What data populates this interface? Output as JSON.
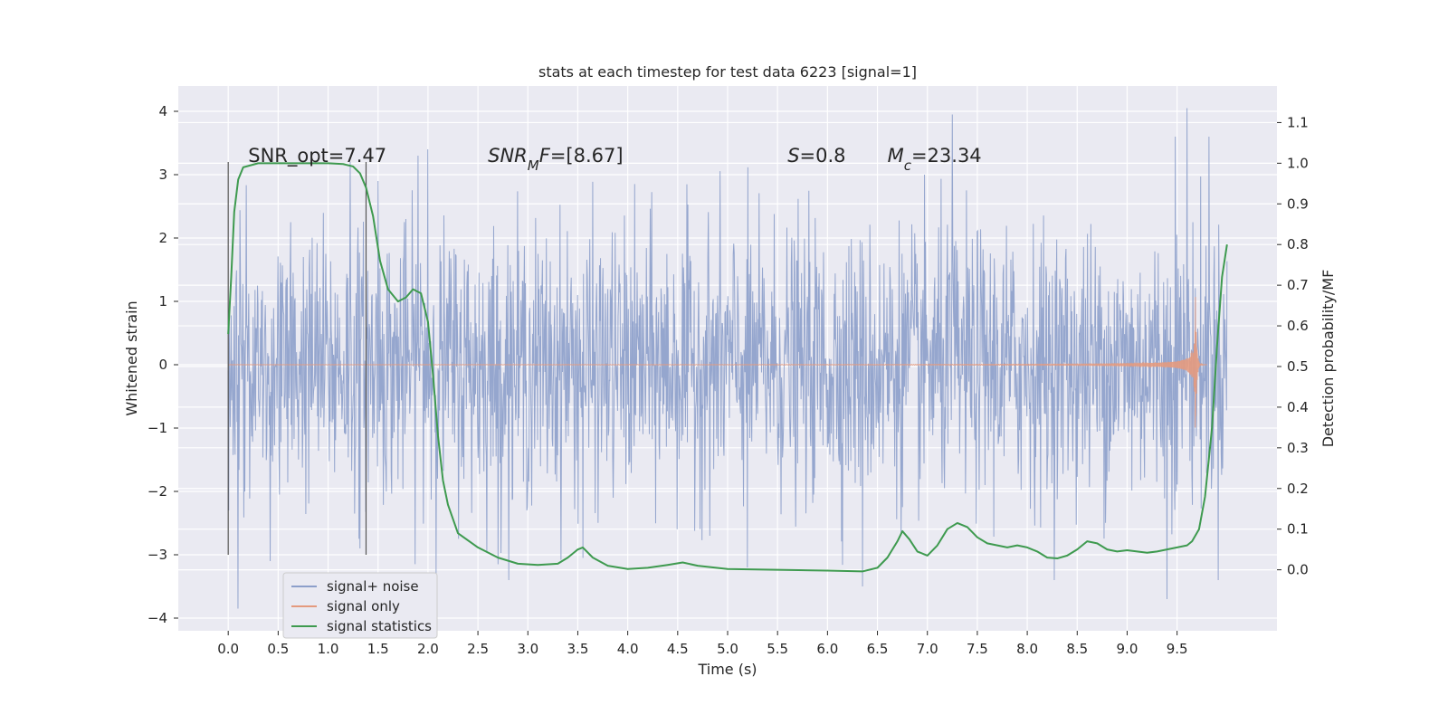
{
  "chart_data": {
    "type": "line",
    "title": "stats at each timestep for test data 6223 [signal=1]",
    "xlabel": "Time (s)",
    "ylabel": "Whitened strain",
    "y2label": "Detection probability/MF",
    "xlim": [
      -0.5,
      10.5
    ],
    "ylim": [
      -4.2,
      4.4
    ],
    "y2lim": [
      -0.15,
      1.19
    ],
    "xticks": [
      0.0,
      0.5,
      1.0,
      1.5,
      2.0,
      2.5,
      3.0,
      3.5,
      4.0,
      4.5,
      5.0,
      5.5,
      6.0,
      6.5,
      7.0,
      7.5,
      8.0,
      8.5,
      9.0,
      9.5
    ],
    "xtick_labels": [
      "0.0",
      "0.5",
      "1.0",
      "1.5",
      "2.0",
      "2.5",
      "3.0",
      "3.5",
      "4.0",
      "4.5",
      "5.0",
      "5.5",
      "6.0",
      "6.5",
      "7.0",
      "7.5",
      "8.0",
      "8.5",
      "9.0",
      "9.5"
    ],
    "yticks": [
      4,
      3,
      2,
      1,
      0,
      -1,
      -2,
      -3,
      -4
    ],
    "ytick_labels": [
      "4",
      "3",
      "2",
      "1",
      "0",
      "−1",
      "−2",
      "−3",
      "−4"
    ],
    "y2ticks": [
      1.1,
      1.0,
      0.9,
      0.8,
      0.7,
      0.6,
      0.5,
      0.4,
      0.3,
      0.2,
      0.1,
      0.0
    ],
    "y2tick_labels": [
      "1.1",
      "1.0",
      "0.9",
      "0.8",
      "0.7",
      "0.6",
      "0.5",
      "0.4",
      "0.3",
      "0.2",
      "0.1",
      "0.0"
    ],
    "grid": true,
    "legend_position": "lower-left",
    "annotations": [
      {
        "text": "SNR_opt=7.47",
        "x": 0.2,
        "y": 3.2
      },
      {
        "text": "SNR_MF=[8.67]",
        "x": 2.6,
        "y": 3.2
      },
      {
        "text": "S=0.8",
        "x": 5.6,
        "y": 3.2
      },
      {
        "text": "M_c=23.34",
        "x": 6.6,
        "y": 3.2
      }
    ],
    "vlines": [
      {
        "x": 0.0,
        "ymin": -3.0,
        "ymax": 3.2
      },
      {
        "x": 1.38,
        "ymin": -3.0,
        "ymax": 3.2
      }
    ],
    "series": [
      {
        "name": "signal+ noise",
        "color": "#8c9fca",
        "axis": "left",
        "t_range": [
          0.0,
          10.0
        ],
        "samples": 2048,
        "rms": 1.0,
        "peaks": [
          [
            0.1,
            -3.85
          ],
          [
            0.42,
            -3.1
          ],
          [
            1.22,
            3.2
          ],
          [
            1.32,
            -2.9
          ],
          [
            1.5,
            2.9
          ],
          [
            1.9,
            3.3
          ],
          [
            2.0,
            3.4
          ],
          [
            2.7,
            -3.15
          ],
          [
            3.55,
            -3.05
          ],
          [
            5.2,
            -3.2
          ],
          [
            6.35,
            -3.5
          ],
          [
            7.25,
            3.95
          ],
          [
            9.4,
            -3.7
          ],
          [
            9.6,
            4.05
          ],
          [
            9.48,
            3.6
          ],
          [
            9.82,
            3.6
          ]
        ]
      },
      {
        "name": "signal only",
        "color": "#e49a7e",
        "axis": "left",
        "t_range": [
          0.0,
          9.8
        ],
        "merger_time": 9.68,
        "peak_amplitude": 1.5
      },
      {
        "name": "signal statistics",
        "color": "#3e9a4f",
        "axis": "right",
        "x": [
          0.0,
          0.03,
          0.06,
          0.1,
          0.15,
          0.3,
          0.6,
          1.0,
          1.15,
          1.25,
          1.32,
          1.38,
          1.45,
          1.52,
          1.6,
          1.7,
          1.78,
          1.85,
          1.93,
          2.0,
          2.05,
          2.1,
          2.15,
          2.2,
          2.3,
          2.5,
          2.7,
          2.9,
          3.1,
          3.3,
          3.4,
          3.5,
          3.55,
          3.65,
          3.8,
          4.0,
          4.2,
          4.4,
          4.55,
          4.7,
          5.0,
          5.5,
          6.0,
          6.35,
          6.5,
          6.6,
          6.7,
          6.75,
          6.82,
          6.9,
          7.0,
          7.1,
          7.2,
          7.3,
          7.4,
          7.5,
          7.6,
          7.7,
          7.8,
          7.9,
          8.0,
          8.1,
          8.2,
          8.3,
          8.4,
          8.5,
          8.6,
          8.7,
          8.8,
          8.9,
          9.0,
          9.1,
          9.2,
          9.3,
          9.4,
          9.5,
          9.6,
          9.65,
          9.72,
          9.78,
          9.85,
          9.9,
          9.95,
          10.0
        ],
        "y": [
          0.58,
          0.72,
          0.88,
          0.96,
          0.99,
          1.0,
          1.0,
          1.0,
          0.998,
          0.992,
          0.975,
          0.94,
          0.87,
          0.76,
          0.69,
          0.66,
          0.67,
          0.69,
          0.68,
          0.61,
          0.48,
          0.33,
          0.22,
          0.16,
          0.09,
          0.055,
          0.03,
          0.015,
          0.012,
          0.015,
          0.03,
          0.05,
          0.055,
          0.03,
          0.01,
          0.002,
          0.005,
          0.012,
          0.018,
          0.01,
          0.002,
          0.0,
          -0.002,
          -0.004,
          0.005,
          0.03,
          0.07,
          0.095,
          0.075,
          0.045,
          0.035,
          0.06,
          0.1,
          0.115,
          0.105,
          0.08,
          0.065,
          0.06,
          0.055,
          0.06,
          0.055,
          0.045,
          0.03,
          0.028,
          0.035,
          0.05,
          0.07,
          0.065,
          0.05,
          0.045,
          0.048,
          0.045,
          0.042,
          0.045,
          0.05,
          0.055,
          0.06,
          0.07,
          0.1,
          0.18,
          0.35,
          0.55,
          0.72,
          0.8
        ]
      }
    ]
  }
}
